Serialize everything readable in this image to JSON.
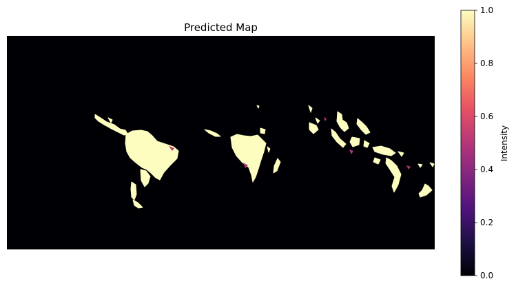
{
  "chart_data": {
    "type": "heatmap",
    "title": "Predicted Map",
    "colormap": "magma",
    "colorbar": {
      "label": "Intensity",
      "range": [
        0.0,
        1.0
      ],
      "ticks": [
        "0.0",
        "0.2",
        "0.4",
        "0.6",
        "0.8",
        "1.0"
      ],
      "colors": [
        "#000004",
        "#1c1044",
        "#4f127b",
        "#812581",
        "#b5367a",
        "#e55064",
        "#fb8761",
        "#fec287",
        "#fcfdbf"
      ]
    },
    "axes_visible": false,
    "background_value": 0.0,
    "feature_value": 1.0
  }
}
